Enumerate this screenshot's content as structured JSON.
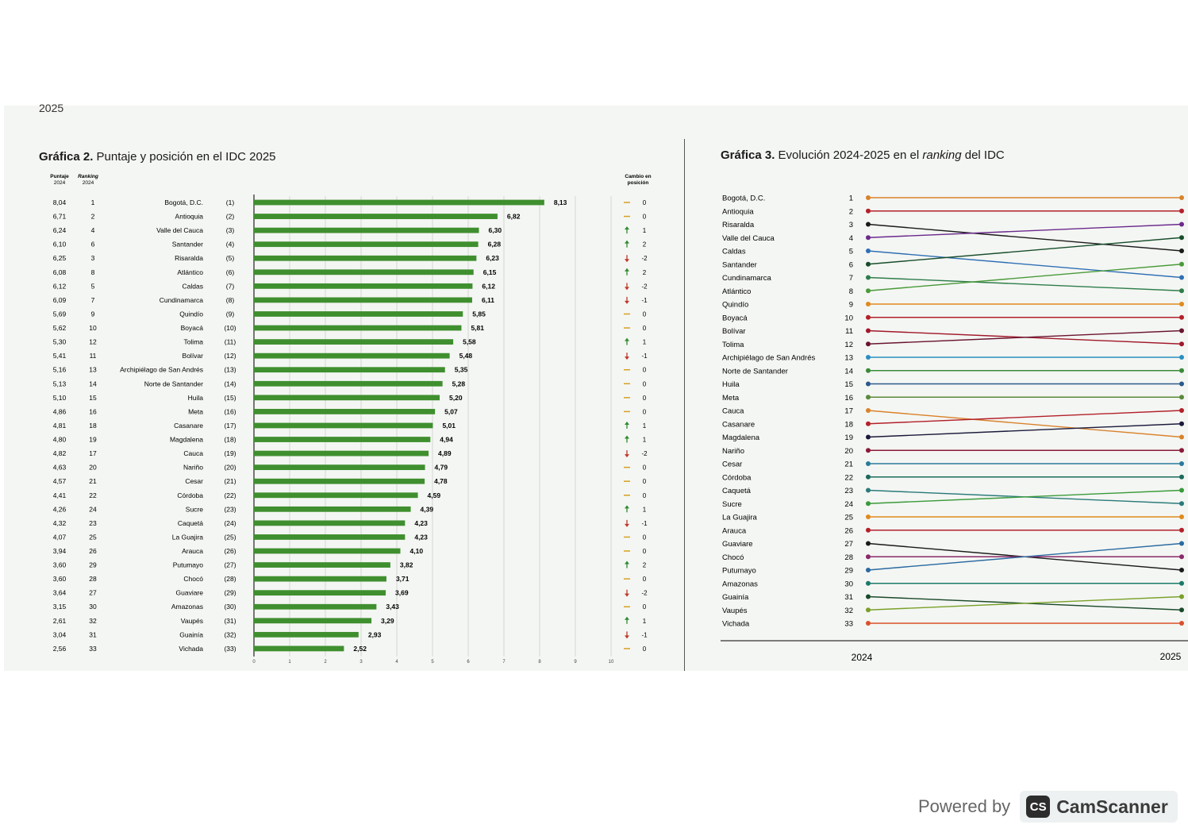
{
  "page": {
    "header": "2025"
  },
  "chart_data": [
    {
      "type": "bar",
      "orientation": "horizontal",
      "title_bold": "Gráfica 2.",
      "title_rest": " Puntaje y posición en el IDC 2025",
      "col_headers": {
        "score_2024": [
          "Puntaje",
          "2024"
        ],
        "rank_2024": [
          "Ranking",
          "2024"
        ],
        "change": [
          "Cambio en",
          "posición"
        ]
      },
      "xlim": [
        0,
        10
      ],
      "xticks": [
        "0",
        "1",
        "2",
        "3",
        "4",
        "5",
        "6",
        "7",
        "8",
        "9",
        "10"
      ],
      "rows": [
        {
          "score_2024": "8,04",
          "rank_2024": "1",
          "name": "Bogotá, D.C.",
          "rank_2025": "(1)",
          "value": 8.13,
          "label": "8,13",
          "dir": "same",
          "change": "0"
        },
        {
          "score_2024": "6,71",
          "rank_2024": "2",
          "name": "Antioquia",
          "rank_2025": "(2)",
          "value": 6.82,
          "label": "6,82",
          "dir": "same",
          "change": "0"
        },
        {
          "score_2024": "6,24",
          "rank_2024": "4",
          "name": "Valle del Cauca",
          "rank_2025": "(3)",
          "value": 6.3,
          "label": "6,30",
          "dir": "up",
          "change": "1"
        },
        {
          "score_2024": "6,10",
          "rank_2024": "6",
          "name": "Santander",
          "rank_2025": "(4)",
          "value": 6.28,
          "label": "6,28",
          "dir": "up",
          "change": "2"
        },
        {
          "score_2024": "6,25",
          "rank_2024": "3",
          "name": "Risaralda",
          "rank_2025": "(5)",
          "value": 6.23,
          "label": "6,23",
          "dir": "down",
          "change": "-2"
        },
        {
          "score_2024": "6,08",
          "rank_2024": "8",
          "name": "Atlántico",
          "rank_2025": "(6)",
          "value": 6.15,
          "label": "6,15",
          "dir": "up",
          "change": "2"
        },
        {
          "score_2024": "6,12",
          "rank_2024": "5",
          "name": "Caldas",
          "rank_2025": "(7)",
          "value": 6.12,
          "label": "6,12",
          "dir": "down",
          "change": "-2"
        },
        {
          "score_2024": "6,09",
          "rank_2024": "7",
          "name": "Cundinamarca",
          "rank_2025": "(8)",
          "value": 6.11,
          "label": "6,11",
          "dir": "down",
          "change": "-1"
        },
        {
          "score_2024": "5,69",
          "rank_2024": "9",
          "name": "Quindío",
          "rank_2025": "(9)",
          "value": 5.85,
          "label": "5,85",
          "dir": "same",
          "change": "0"
        },
        {
          "score_2024": "5,62",
          "rank_2024": "10",
          "name": "Boyacá",
          "rank_2025": "(10)",
          "value": 5.81,
          "label": "5,81",
          "dir": "same",
          "change": "0"
        },
        {
          "score_2024": "5,30",
          "rank_2024": "12",
          "name": "Tolima",
          "rank_2025": "(11)",
          "value": 5.58,
          "label": "5,58",
          "dir": "up",
          "change": "1"
        },
        {
          "score_2024": "5,41",
          "rank_2024": "11",
          "name": "Bolívar",
          "rank_2025": "(12)",
          "value": 5.48,
          "label": "5,48",
          "dir": "down",
          "change": "-1"
        },
        {
          "score_2024": "5,16",
          "rank_2024": "13",
          "name": "Archipiélago de San Andrés",
          "rank_2025": "(13)",
          "value": 5.35,
          "label": "5,35",
          "dir": "same",
          "change": "0"
        },
        {
          "score_2024": "5,13",
          "rank_2024": "14",
          "name": "Norte de Santander",
          "rank_2025": "(14)",
          "value": 5.28,
          "label": "5,28",
          "dir": "same",
          "change": "0"
        },
        {
          "score_2024": "5,10",
          "rank_2024": "15",
          "name": "Huila",
          "rank_2025": "(15)",
          "value": 5.2,
          "label": "5,20",
          "dir": "same",
          "change": "0"
        },
        {
          "score_2024": "4,86",
          "rank_2024": "16",
          "name": "Meta",
          "rank_2025": "(16)",
          "value": 5.07,
          "label": "5,07",
          "dir": "same",
          "change": "0"
        },
        {
          "score_2024": "4,81",
          "rank_2024": "18",
          "name": "Casanare",
          "rank_2025": "(17)",
          "value": 5.01,
          "label": "5,01",
          "dir": "up",
          "change": "1"
        },
        {
          "score_2024": "4,80",
          "rank_2024": "19",
          "name": "Magdalena",
          "rank_2025": "(18)",
          "value": 4.94,
          "label": "4,94",
          "dir": "up",
          "change": "1"
        },
        {
          "score_2024": "4,82",
          "rank_2024": "17",
          "name": "Cauca",
          "rank_2025": "(19)",
          "value": 4.89,
          "label": "4,89",
          "dir": "down",
          "change": "-2"
        },
        {
          "score_2024": "4,63",
          "rank_2024": "20",
          "name": "Nariño",
          "rank_2025": "(20)",
          "value": 4.79,
          "label": "4,79",
          "dir": "same",
          "change": "0"
        },
        {
          "score_2024": "4,57",
          "rank_2024": "21",
          "name": "Cesar",
          "rank_2025": "(21)",
          "value": 4.78,
          "label": "4,78",
          "dir": "same",
          "change": "0"
        },
        {
          "score_2024": "4,41",
          "rank_2024": "22",
          "name": "Córdoba",
          "rank_2025": "(22)",
          "value": 4.59,
          "label": "4,59",
          "dir": "same",
          "change": "0"
        },
        {
          "score_2024": "4,26",
          "rank_2024": "24",
          "name": "Sucre",
          "rank_2025": "(23)",
          "value": 4.39,
          "label": "4,39",
          "dir": "up",
          "change": "1"
        },
        {
          "score_2024": "4,32",
          "rank_2024": "23",
          "name": "Caquetá",
          "rank_2025": "(24)",
          "value": 4.23,
          "label": "4,23",
          "dir": "down",
          "change": "-1"
        },
        {
          "score_2024": "4,07",
          "rank_2024": "25",
          "name": "La Guajira",
          "rank_2025": "(25)",
          "value": 4.23,
          "label": "4,23",
          "dir": "same",
          "change": "0"
        },
        {
          "score_2024": "3,94",
          "rank_2024": "26",
          "name": "Arauca",
          "rank_2025": "(26)",
          "value": 4.1,
          "label": "4,10",
          "dir": "same",
          "change": "0"
        },
        {
          "score_2024": "3,60",
          "rank_2024": "29",
          "name": "Putumayo",
          "rank_2025": "(27)",
          "value": 3.82,
          "label": "3,82",
          "dir": "up",
          "change": "2"
        },
        {
          "score_2024": "3,60",
          "rank_2024": "28",
          "name": "Chocó",
          "rank_2025": "(28)",
          "value": 3.71,
          "label": "3,71",
          "dir": "same",
          "change": "0"
        },
        {
          "score_2024": "3,64",
          "rank_2024": "27",
          "name": "Guaviare",
          "rank_2025": "(29)",
          "value": 3.69,
          "label": "3,69",
          "dir": "down",
          "change": "-2"
        },
        {
          "score_2024": "3,15",
          "rank_2024": "30",
          "name": "Amazonas",
          "rank_2025": "(30)",
          "value": 3.43,
          "label": "3,43",
          "dir": "same",
          "change": "0"
        },
        {
          "score_2024": "2,61",
          "rank_2024": "32",
          "name": "Vaupés",
          "rank_2025": "(31)",
          "value": 3.29,
          "label": "3,29",
          "dir": "up",
          "change": "1"
        },
        {
          "score_2024": "3,04",
          "rank_2024": "31",
          "name": "Guainía",
          "rank_2025": "(32)",
          "value": 2.93,
          "label": "2,93",
          "dir": "down",
          "change": "-1"
        },
        {
          "score_2024": "2,56",
          "rank_2024": "33",
          "name": "Vichada",
          "rank_2025": "(33)",
          "value": 2.52,
          "label": "2,52",
          "dir": "same",
          "change": "0"
        }
      ],
      "colors": {
        "bar": "#3f8f2f",
        "up": "#2e8b2e",
        "down": "#c0392b",
        "same": "#d8a020"
      }
    },
    {
      "type": "line",
      "subtype": "slope",
      "title_bold": "Gráfica 3.",
      "title_mid": " Evolución 2024-2025 en el ",
      "title_italic": "ranking",
      "title_end": " del IDC",
      "x": [
        "2024",
        "2025"
      ],
      "rank_labels": [
        "1",
        "2",
        "3",
        "4",
        "5",
        "6",
        "7",
        "8",
        "9",
        "10",
        "11",
        "12",
        "13",
        "14",
        "15",
        "16",
        "17",
        "18",
        "19",
        "20",
        "21",
        "22",
        "23",
        "24",
        "25",
        "26",
        "27",
        "28",
        "29",
        "30",
        "31",
        "32",
        "33"
      ],
      "row_names": [
        "Bogotá, D.C.",
        "Antioquia",
        "Risaralda",
        "Valle del Cauca",
        "Caldas",
        "Santander",
        "Cundinamarca",
        "Atlántico",
        "Quindío",
        "Boyacá",
        "Bolívar",
        "Tolima",
        "Archipiélago de San Andrés",
        "Norte de Santander",
        "Huila",
        "Meta",
        "Cauca",
        "Casanare",
        "Magdalena",
        "Nariño",
        "Cesar",
        "Córdoba",
        "Caquetá",
        "Sucre",
        "La Guajira",
        "Arauca",
        "Guaviare",
        "Chocó",
        "Putumayo",
        "Amazonas",
        "Guainía",
        "Vaupés",
        "Vichada"
      ],
      "series": [
        {
          "name": "Bogotá, D.C.",
          "values": [
            1,
            1
          ],
          "color": "#d9822b"
        },
        {
          "name": "Antioquia",
          "values": [
            2,
            2
          ],
          "color": "#b3202a"
        },
        {
          "name": "Risaralda",
          "values": [
            3,
            5
          ],
          "color": "#1a1a1a"
        },
        {
          "name": "Valle del Cauca",
          "values": [
            4,
            3
          ],
          "color": "#6b2a8c"
        },
        {
          "name": "Caldas",
          "values": [
            5,
            7
          ],
          "color": "#2f6fb5"
        },
        {
          "name": "Santander",
          "values": [
            6,
            4
          ],
          "color": "#174d2a"
        },
        {
          "name": "Cundinamarca",
          "values": [
            7,
            8
          ],
          "color": "#2e7d4a"
        },
        {
          "name": "Atlántico",
          "values": [
            8,
            6
          ],
          "color": "#4a9a3a"
        },
        {
          "name": "Quindío",
          "values": [
            9,
            9
          ],
          "color": "#e08a1e"
        },
        {
          "name": "Boyacá",
          "values": [
            10,
            10
          ],
          "color": "#b3202a"
        },
        {
          "name": "Bolívar",
          "values": [
            11,
            12
          ],
          "color": "#a0182a"
        },
        {
          "name": "Tolima",
          "values": [
            12,
            11
          ],
          "color": "#6a1530"
        },
        {
          "name": "Archipiélago de San Andrés",
          "values": [
            13,
            13
          ],
          "color": "#2a8fc0"
        },
        {
          "name": "Norte de Santander",
          "values": [
            14,
            14
          ],
          "color": "#3a8a3a"
        },
        {
          "name": "Huila",
          "values": [
            15,
            15
          ],
          "color": "#2a5a8a"
        },
        {
          "name": "Meta",
          "values": [
            16,
            16
          ],
          "color": "#5a8a3a"
        },
        {
          "name": "Cauca",
          "values": [
            17,
            19
          ],
          "color": "#d9822b"
        },
        {
          "name": "Casanare",
          "values": [
            18,
            17
          ],
          "color": "#b3202a"
        },
        {
          "name": "Magdalena",
          "values": [
            19,
            18
          ],
          "color": "#1a1a3a"
        },
        {
          "name": "Nariño",
          "values": [
            20,
            20
          ],
          "color": "#8a1a3a"
        },
        {
          "name": "Cesar",
          "values": [
            21,
            21
          ],
          "color": "#2a7a9a"
        },
        {
          "name": "Córdoba",
          "values": [
            22,
            22
          ],
          "color": "#1a6a5a"
        },
        {
          "name": "Caquetá",
          "values": [
            23,
            24
          ],
          "color": "#2a7a7a"
        },
        {
          "name": "Sucre",
          "values": [
            24,
            23
          ],
          "color": "#3a9a3a"
        },
        {
          "name": "La Guajira",
          "values": [
            25,
            25
          ],
          "color": "#e08a1e"
        },
        {
          "name": "Arauca",
          "values": [
            26,
            26
          ],
          "color": "#b3202a"
        },
        {
          "name": "Guaviare",
          "values": [
            27,
            29
          ],
          "color": "#1a1a1a"
        },
        {
          "name": "Chocó",
          "values": [
            28,
            28
          ],
          "color": "#8a2a6a"
        },
        {
          "name": "Putumayo",
          "values": [
            29,
            27
          ],
          "color": "#2a6aa0"
        },
        {
          "name": "Amazonas",
          "values": [
            30,
            30
          ],
          "color": "#1a7a6a"
        },
        {
          "name": "Guainía",
          "values": [
            31,
            32
          ],
          "color": "#1a4a2a"
        },
        {
          "name": "Vaupés",
          "values": [
            32,
            31
          ],
          "color": "#7aa02a"
        },
        {
          "name": "Vichada",
          "values": [
            33,
            33
          ],
          "color": "#d9502b"
        }
      ]
    }
  ],
  "footer": {
    "powered_by": "Powered by",
    "logo_text": "CS",
    "brand": "CamScanner"
  }
}
